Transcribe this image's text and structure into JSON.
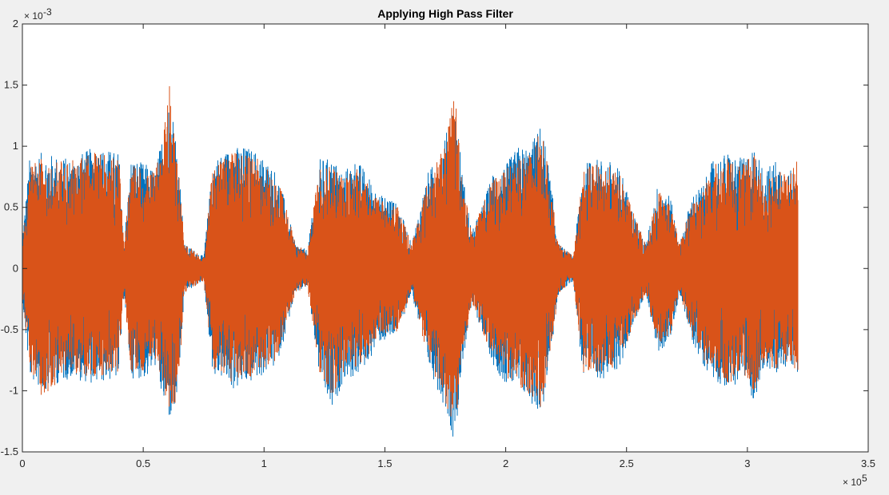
{
  "chart_data": {
    "type": "line",
    "title": "Applying High Pass Filter",
    "xlabel": "",
    "ylabel": "",
    "xlim": [
      0,
      350000
    ],
    "ylim": [
      -0.0015,
      0.002
    ],
    "x_ticks": [
      0,
      50000,
      100000,
      150000,
      200000,
      250000,
      300000,
      350000
    ],
    "x_tick_labels": [
      "0",
      "0.5",
      "1",
      "1.5",
      "2",
      "2.5",
      "3",
      "3.5"
    ],
    "y_ticks": [
      -0.0015,
      -0.001,
      -0.0005,
      0,
      0.0005,
      0.001,
      0.0015,
      0.002
    ],
    "y_tick_labels": [
      "-1.5",
      "-1",
      "-0.5",
      "0",
      "0.5",
      "1",
      "1.5",
      "2"
    ],
    "x_exponent_label": "× 10",
    "x_exponent_power": "5",
    "y_exponent_label": "× 10",
    "y_exponent_power": "-3",
    "grid": false,
    "series": [
      {
        "color": "#0072BD",
        "x_range": [
          0,
          321000
        ],
        "envelope_max": [
          [
            0,
            0.00028
          ],
          [
            3000,
            0.0009
          ],
          [
            8000,
            0.00095
          ],
          [
            20000,
            0.0009
          ],
          [
            30000,
            0.001
          ],
          [
            40000,
            0.00095
          ],
          [
            42000,
            0.0002
          ],
          [
            45000,
            0.0009
          ],
          [
            52000,
            0.00085
          ],
          [
            55000,
            0.0008
          ],
          [
            58000,
            0.0011
          ],
          [
            61000,
            0.0014
          ],
          [
            63000,
            0.0012
          ],
          [
            65000,
            0.0008
          ],
          [
            67000,
            0.0002
          ],
          [
            75000,
            0.0001
          ],
          [
            79000,
            0.0009
          ],
          [
            83000,
            0.00095
          ],
          [
            87000,
            0.001
          ],
          [
            93000,
            0.001
          ],
          [
            98000,
            0.00095
          ],
          [
            105000,
            0.0008
          ],
          [
            108000,
            0.0006
          ],
          [
            113000,
            0.0002
          ],
          [
            118000,
            0.00015
          ],
          [
            123000,
            0.0009
          ],
          [
            128000,
            0.0009
          ],
          [
            133000,
            0.0008
          ],
          [
            138000,
            0.0009
          ],
          [
            142000,
            0.0008
          ],
          [
            148000,
            0.0006
          ],
          [
            152000,
            0.0006
          ],
          [
            156000,
            0.0005
          ],
          [
            161000,
            0.0002
          ],
          [
            168000,
            0.0008
          ],
          [
            172000,
            0.0009
          ],
          [
            176000,
            0.00115
          ],
          [
            178000,
            0.0014
          ],
          [
            180000,
            0.0012
          ],
          [
            182000,
            0.0008
          ],
          [
            186000,
            0.0003
          ],
          [
            190000,
            0.0005
          ],
          [
            195000,
            0.0008
          ],
          [
            200000,
            0.00085
          ],
          [
            205000,
            0.001
          ],
          [
            210000,
            0.001
          ],
          [
            215000,
            0.0012
          ],
          [
            218000,
            0.0008
          ],
          [
            222000,
            0.0002
          ],
          [
            228000,
            0.0001
          ],
          [
            232000,
            0.00085
          ],
          [
            236000,
            0.0009
          ],
          [
            242000,
            0.0009
          ],
          [
            248000,
            0.0008
          ],
          [
            252000,
            0.0005
          ],
          [
            258000,
            0.0002
          ],
          [
            263000,
            0.0007
          ],
          [
            268000,
            0.0006
          ],
          [
            272000,
            0.0002
          ],
          [
            277000,
            0.0006
          ],
          [
            282000,
            0.0007
          ],
          [
            286000,
            0.0009
          ],
          [
            292000,
            0.00095
          ],
          [
            298000,
            0.0009
          ],
          [
            303000,
            0.001
          ],
          [
            307000,
            0.0008
          ],
          [
            312000,
            0.0009
          ],
          [
            317000,
            0.0008
          ],
          [
            321000,
            0.00085
          ]
        ],
        "envelope_min": [
          [
            0,
            -0.00025
          ],
          [
            3000,
            -0.0009
          ],
          [
            8000,
            -0.001
          ],
          [
            20000,
            -0.0009
          ],
          [
            30000,
            -0.00095
          ],
          [
            40000,
            -0.0009
          ],
          [
            42000,
            -0.0002
          ],
          [
            45000,
            -0.0009
          ],
          [
            52000,
            -0.0009
          ],
          [
            55000,
            -0.0008
          ],
          [
            58000,
            -0.0011
          ],
          [
            61000,
            -0.00125
          ],
          [
            63000,
            -0.0012
          ],
          [
            65000,
            -0.0009
          ],
          [
            67000,
            -0.0002
          ],
          [
            75000,
            -0.0001
          ],
          [
            79000,
            -0.0009
          ],
          [
            83000,
            -0.0009
          ],
          [
            87000,
            -0.001
          ],
          [
            93000,
            -0.00095
          ],
          [
            98000,
            -0.0009
          ],
          [
            105000,
            -0.0008
          ],
          [
            108000,
            -0.0006
          ],
          [
            113000,
            -0.0002
          ],
          [
            118000,
            -0.00015
          ],
          [
            123000,
            -0.0009
          ],
          [
            128000,
            -0.0012
          ],
          [
            133000,
            -0.0009
          ],
          [
            138000,
            -0.0009
          ],
          [
            142000,
            -0.0008
          ],
          [
            148000,
            -0.0006
          ],
          [
            152000,
            -0.0006
          ],
          [
            156000,
            -0.0005
          ],
          [
            161000,
            -0.0002
          ],
          [
            168000,
            -0.0008
          ],
          [
            172000,
            -0.001
          ],
          [
            176000,
            -0.0012
          ],
          [
            178000,
            -0.0014
          ],
          [
            180000,
            -0.0012
          ],
          [
            182000,
            -0.0008
          ],
          [
            186000,
            -0.0003
          ],
          [
            190000,
            -0.0005
          ],
          [
            195000,
            -0.0008
          ],
          [
            200000,
            -0.00095
          ],
          [
            205000,
            -0.001
          ],
          [
            210000,
            -0.0011
          ],
          [
            215000,
            -0.0012
          ],
          [
            218000,
            -0.0008
          ],
          [
            222000,
            -0.0002
          ],
          [
            228000,
            -0.0001
          ],
          [
            232000,
            -0.0009
          ],
          [
            236000,
            -0.0009
          ],
          [
            242000,
            -0.0009
          ],
          [
            248000,
            -0.0008
          ],
          [
            252000,
            -0.0005
          ],
          [
            258000,
            -0.0002
          ],
          [
            263000,
            -0.0007
          ],
          [
            268000,
            -0.0006
          ],
          [
            272000,
            -0.0002
          ],
          [
            277000,
            -0.0006
          ],
          [
            282000,
            -0.0008
          ],
          [
            286000,
            -0.0009
          ],
          [
            292000,
            -0.001
          ],
          [
            298000,
            -0.0009
          ],
          [
            303000,
            -0.0011
          ],
          [
            307000,
            -0.0008
          ],
          [
            312000,
            -0.0009
          ],
          [
            317000,
            -0.0008
          ],
          [
            321000,
            -0.00085
          ]
        ]
      },
      {
        "color": "#D95319",
        "x_range": [
          0,
          321000
        ],
        "envelope_max": [
          [
            0,
            0.0002
          ],
          [
            3000,
            0.00085
          ],
          [
            8000,
            0.0009
          ],
          [
            20000,
            0.00088
          ],
          [
            30000,
            0.00095
          ],
          [
            40000,
            0.0009
          ],
          [
            42000,
            0.0002
          ],
          [
            45000,
            0.00085
          ],
          [
            52000,
            0.0008
          ],
          [
            55000,
            0.0008
          ],
          [
            58000,
            0.00105
          ],
          [
            61000,
            0.00152
          ],
          [
            63000,
            0.00115
          ],
          [
            65000,
            0.00075
          ],
          [
            67000,
            0.0002
          ],
          [
            75000,
            0.0001
          ],
          [
            79000,
            0.00088
          ],
          [
            83000,
            0.0009
          ],
          [
            87000,
            0.00095
          ],
          [
            93000,
            0.00095
          ],
          [
            98000,
            0.0009
          ],
          [
            105000,
            0.00075
          ],
          [
            108000,
            0.0006
          ],
          [
            113000,
            0.0002
          ],
          [
            118000,
            0.00015
          ],
          [
            123000,
            0.00085
          ],
          [
            128000,
            0.00085
          ],
          [
            133000,
            0.00075
          ],
          [
            138000,
            0.00085
          ],
          [
            142000,
            0.00075
          ],
          [
            148000,
            0.00055
          ],
          [
            152000,
            0.00055
          ],
          [
            156000,
            0.0005
          ],
          [
            161000,
            0.0002
          ],
          [
            168000,
            0.00075
          ],
          [
            172000,
            0.0009
          ],
          [
            176000,
            0.0011
          ],
          [
            178000,
            0.00149
          ],
          [
            180000,
            0.0013
          ],
          [
            182000,
            0.00075
          ],
          [
            186000,
            0.0003
          ],
          [
            190000,
            0.0005
          ],
          [
            195000,
            0.00075
          ],
          [
            200000,
            0.0008
          ],
          [
            205000,
            0.00095
          ],
          [
            210000,
            0.00095
          ],
          [
            215000,
            0.00115
          ],
          [
            218000,
            0.00075
          ],
          [
            222000,
            0.0002
          ],
          [
            228000,
            0.0001
          ],
          [
            232000,
            0.0008
          ],
          [
            236000,
            0.00085
          ],
          [
            242000,
            0.00085
          ],
          [
            248000,
            0.00075
          ],
          [
            252000,
            0.0005
          ],
          [
            258000,
            0.0002
          ],
          [
            263000,
            0.00065
          ],
          [
            268000,
            0.00055
          ],
          [
            272000,
            0.0002
          ],
          [
            277000,
            0.00055
          ],
          [
            282000,
            0.00065
          ],
          [
            286000,
            0.00085
          ],
          [
            292000,
            0.0009
          ],
          [
            298000,
            0.00085
          ],
          [
            303000,
            0.00095
          ],
          [
            307000,
            0.00075
          ],
          [
            312000,
            0.00085
          ],
          [
            317000,
            0.00075
          ],
          [
            321000,
            0.0009
          ]
        ],
        "envelope_min": [
          [
            0,
            -0.0002
          ],
          [
            3000,
            -0.00085
          ],
          [
            8000,
            -0.00105
          ],
          [
            20000,
            -0.00085
          ],
          [
            30000,
            -0.0009
          ],
          [
            40000,
            -0.00085
          ],
          [
            42000,
            -0.0002
          ],
          [
            45000,
            -0.00085
          ],
          [
            52000,
            -0.00085
          ],
          [
            55000,
            -0.00075
          ],
          [
            58000,
            -0.00105
          ],
          [
            61000,
            -0.0012
          ],
          [
            63000,
            -0.00115
          ],
          [
            65000,
            -0.00085
          ],
          [
            67000,
            -0.0002
          ],
          [
            75000,
            -0.0001
          ],
          [
            79000,
            -0.00085
          ],
          [
            83000,
            -0.00085
          ],
          [
            87000,
            -0.00095
          ],
          [
            93000,
            -0.0009
          ],
          [
            98000,
            -0.00085
          ],
          [
            105000,
            -0.00075
          ],
          [
            108000,
            -0.00055
          ],
          [
            113000,
            -0.0002
          ],
          [
            118000,
            -0.00015
          ],
          [
            123000,
            -0.00085
          ],
          [
            128000,
            -0.00105
          ],
          [
            133000,
            -0.00085
          ],
          [
            138000,
            -0.00085
          ],
          [
            142000,
            -0.00075
          ],
          [
            148000,
            -0.00055
          ],
          [
            152000,
            -0.00055
          ],
          [
            156000,
            -0.0005
          ],
          [
            161000,
            -0.0002
          ],
          [
            168000,
            -0.00075
          ],
          [
            172000,
            -0.00095
          ],
          [
            176000,
            -0.00115
          ],
          [
            178000,
            -0.0013
          ],
          [
            180000,
            -0.00115
          ],
          [
            182000,
            -0.00075
          ],
          [
            186000,
            -0.0003
          ],
          [
            190000,
            -0.0005
          ],
          [
            195000,
            -0.00075
          ],
          [
            200000,
            -0.0009
          ],
          [
            205000,
            -0.00095
          ],
          [
            210000,
            -0.00105
          ],
          [
            215000,
            -0.00115
          ],
          [
            218000,
            -0.00075
          ],
          [
            222000,
            -0.0002
          ],
          [
            228000,
            -0.0001
          ],
          [
            232000,
            -0.00085
          ],
          [
            236000,
            -0.00085
          ],
          [
            242000,
            -0.00085
          ],
          [
            248000,
            -0.00075
          ],
          [
            252000,
            -0.0005
          ],
          [
            258000,
            -0.0002
          ],
          [
            263000,
            -0.00065
          ],
          [
            268000,
            -0.00055
          ],
          [
            272000,
            -0.0002
          ],
          [
            277000,
            -0.00055
          ],
          [
            282000,
            -0.00075
          ],
          [
            286000,
            -0.00085
          ],
          [
            292000,
            -0.00095
          ],
          [
            298000,
            -0.00085
          ],
          [
            303000,
            -0.00105
          ],
          [
            307000,
            -0.00075
          ],
          [
            312000,
            -0.00085
          ],
          [
            317000,
            -0.00075
          ],
          [
            321000,
            -0.0009
          ]
        ]
      }
    ]
  }
}
